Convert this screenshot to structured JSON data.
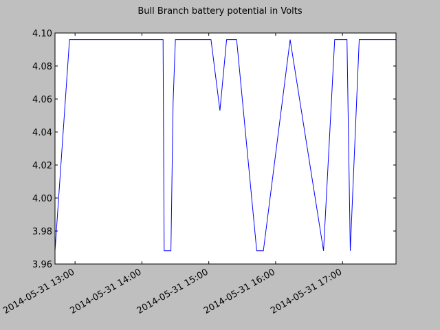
{
  "chart_data": {
    "type": "line",
    "title": "Bull Branch battery potential in Volts",
    "xlabel": "",
    "ylabel": "",
    "xlim": [
      "2014-05-31 12:42",
      "2014-05-31 17:48"
    ],
    "ylim": [
      3.96,
      4.1
    ],
    "grid": false,
    "x_ticks": [
      {
        "time": "2014-05-31 13:00",
        "label": "2014-05-31 13:00"
      },
      {
        "time": "2014-05-31 14:00",
        "label": "2014-05-31 14:00"
      },
      {
        "time": "2014-05-31 15:00",
        "label": "2014-05-31 15:00"
      },
      {
        "time": "2014-05-31 16:00",
        "label": "2014-05-31 16:00"
      },
      {
        "time": "2014-05-31 17:00",
        "label": "2014-05-31 17:00"
      }
    ],
    "y_ticks": [
      {
        "value": 3.96,
        "label": "3.96"
      },
      {
        "value": 3.98,
        "label": "3.98"
      },
      {
        "value": 4.0,
        "label": "4.00"
      },
      {
        "value": 4.02,
        "label": "4.02"
      },
      {
        "value": 4.04,
        "label": "4.04"
      },
      {
        "value": 4.06,
        "label": "4.06"
      },
      {
        "value": 4.08,
        "label": "4.08"
      },
      {
        "value": 4.1,
        "label": "4.10"
      }
    ],
    "series": [
      {
        "color": "#0000ff",
        "x": [
          "2014-05-31 12:42",
          "2014-05-31 12:55",
          "2014-05-31 14:19",
          "2014-05-31 14:20",
          "2014-05-31 14:26",
          "2014-05-31 14:28",
          "2014-05-31 14:30",
          "2014-05-31 15:02",
          "2014-05-31 15:10",
          "2014-05-31 15:16",
          "2014-05-31 15:25",
          "2014-05-31 15:43",
          "2014-05-31 15:49",
          "2014-05-31 16:13",
          "2014-05-31 16:43",
          "2014-05-31 16:53",
          "2014-05-31 17:04",
          "2014-05-31 17:07",
          "2014-05-31 17:15",
          "2014-05-31 17:48"
        ],
        "y": [
          3.968,
          4.096,
          4.096,
          3.968,
          3.968,
          4.058,
          4.096,
          4.096,
          4.053,
          4.096,
          4.096,
          3.968,
          3.968,
          4.096,
          3.968,
          4.096,
          4.096,
          3.968,
          4.096,
          4.096
        ]
      }
    ]
  }
}
